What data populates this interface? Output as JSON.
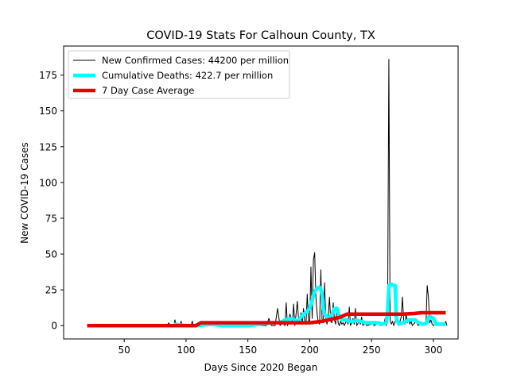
{
  "chart_data": {
    "type": "line",
    "title": "COVID-19 Stats For Calhoun County, TX",
    "xlabel": "Days Since 2020 Began",
    "ylabel": "New COVID-19 Cases",
    "xlim": [
      1,
      320
    ],
    "ylim": [
      -9.3,
      195.3
    ],
    "xticks": [
      50,
      100,
      150,
      200,
      250,
      300
    ],
    "yticks": [
      0,
      25,
      50,
      75,
      100,
      125,
      150,
      175
    ],
    "grid": false,
    "legend_position": "top-left",
    "series": [
      {
        "name": "New Confirmed Cases: 44200 per million",
        "color": "#000000",
        "points": [
          [
            20,
            0
          ],
          [
            85,
            0
          ],
          [
            86,
            2
          ],
          [
            87,
            0
          ],
          [
            90,
            0
          ],
          [
            91,
            4
          ],
          [
            92,
            0
          ],
          [
            95,
            0
          ],
          [
            96,
            3
          ],
          [
            97,
            0
          ],
          [
            104,
            0
          ],
          [
            105,
            3
          ],
          [
            106,
            0
          ],
          [
            110,
            0
          ],
          [
            112,
            1
          ],
          [
            114,
            0
          ],
          [
            130,
            0
          ],
          [
            132,
            2
          ],
          [
            134,
            0
          ],
          [
            140,
            0
          ],
          [
            142,
            1
          ],
          [
            144,
            0
          ],
          [
            155,
            0
          ],
          [
            157,
            2
          ],
          [
            159,
            0
          ],
          [
            165,
            0
          ],
          [
            167,
            5
          ],
          [
            169,
            0
          ],
          [
            172,
            0
          ],
          [
            174,
            12
          ],
          [
            176,
            0
          ],
          [
            178,
            2
          ],
          [
            180,
            0
          ],
          [
            181,
            16
          ],
          [
            182,
            0
          ],
          [
            184,
            8
          ],
          [
            186,
            2
          ],
          [
            187,
            15
          ],
          [
            188,
            0
          ],
          [
            190,
            17
          ],
          [
            191,
            4
          ],
          [
            192,
            2
          ],
          [
            193,
            9
          ],
          [
            194,
            1
          ],
          [
            195,
            12
          ],
          [
            196,
            3
          ],
          [
            197,
            1
          ],
          [
            198,
            22
          ],
          [
            199,
            4
          ],
          [
            200,
            2
          ],
          [
            201,
            41
          ],
          [
            202,
            5
          ],
          [
            203,
            46
          ],
          [
            204,
            51
          ],
          [
            205,
            20
          ],
          [
            206,
            8
          ],
          [
            207,
            2
          ],
          [
            208,
            1
          ],
          [
            209,
            39
          ],
          [
            210,
            4
          ],
          [
            211,
            2
          ],
          [
            212,
            30
          ],
          [
            213,
            5
          ],
          [
            214,
            1
          ],
          [
            215,
            7
          ],
          [
            216,
            20
          ],
          [
            217,
            3
          ],
          [
            218,
            2
          ],
          [
            219,
            16
          ],
          [
            220,
            4
          ],
          [
            221,
            1
          ],
          [
            222,
            13
          ],
          [
            223,
            2
          ],
          [
            224,
            0
          ],
          [
            225,
            3
          ],
          [
            226,
            1
          ],
          [
            227,
            2
          ],
          [
            228,
            0
          ],
          [
            230,
            4
          ],
          [
            231,
            1
          ],
          [
            232,
            13
          ],
          [
            233,
            0
          ],
          [
            234,
            2
          ],
          [
            235,
            5
          ],
          [
            236,
            1
          ],
          [
            237,
            12
          ],
          [
            238,
            0
          ],
          [
            240,
            3
          ],
          [
            241,
            1
          ],
          [
            242,
            6
          ],
          [
            243,
            0
          ],
          [
            245,
            2
          ],
          [
            246,
            0
          ],
          [
            250,
            1
          ],
          [
            251,
            3
          ],
          [
            252,
            0
          ],
          [
            256,
            2
          ],
          [
            257,
            0
          ],
          [
            260,
            1
          ],
          [
            261,
            5
          ],
          [
            262,
            0
          ],
          [
            263,
            10
          ],
          [
            264,
            186
          ],
          [
            265,
            4
          ],
          [
            266,
            1
          ],
          [
            267,
            3
          ],
          [
            268,
            0
          ],
          [
            270,
            5
          ],
          [
            271,
            2
          ],
          [
            272,
            0
          ],
          [
            274,
            6
          ],
          [
            275,
            20
          ],
          [
            276,
            3
          ],
          [
            277,
            1
          ],
          [
            278,
            8
          ],
          [
            279,
            2
          ],
          [
            280,
            5
          ],
          [
            281,
            1
          ],
          [
            282,
            3
          ],
          [
            283,
            0
          ],
          [
            285,
            2
          ],
          [
            286,
            4
          ],
          [
            287,
            1
          ],
          [
            288,
            0
          ],
          [
            290,
            2
          ],
          [
            291,
            0
          ],
          [
            294,
            1
          ],
          [
            295,
            28
          ],
          [
            296,
            20
          ],
          [
            297,
            2
          ],
          [
            298,
            4
          ],
          [
            299,
            1
          ],
          [
            300,
            0
          ],
          [
            302,
            2
          ],
          [
            303,
            0
          ],
          [
            306,
            1
          ],
          [
            307,
            2
          ],
          [
            308,
            0
          ],
          [
            310,
            3
          ],
          [
            311,
            0
          ]
        ]
      },
      {
        "name": "Cumulative Deaths: 422.7 per million",
        "color": "#00ffff",
        "points": [
          [
            90,
            1
          ],
          [
            100,
            0
          ],
          [
            110,
            0
          ],
          [
            120,
            1
          ],
          [
            130,
            0
          ],
          [
            150,
            0
          ],
          [
            160,
            1
          ],
          [
            170,
            2
          ],
          [
            175,
            2
          ],
          [
            178,
            3
          ],
          [
            180,
            4
          ],
          [
            185,
            5
          ],
          [
            188,
            4
          ],
          [
            190,
            3
          ],
          [
            195,
            8
          ],
          [
            198,
            10
          ],
          [
            200,
            12
          ],
          [
            202,
            18
          ],
          [
            204,
            24
          ],
          [
            206,
            26
          ],
          [
            208,
            27
          ],
          [
            209,
            25
          ],
          [
            210,
            22
          ],
          [
            211,
            12
          ],
          [
            212,
            8
          ],
          [
            214,
            6
          ],
          [
            216,
            5
          ],
          [
            218,
            8
          ],
          [
            220,
            12
          ],
          [
            222,
            12
          ],
          [
            224,
            6
          ],
          [
            226,
            4
          ],
          [
            230,
            4
          ],
          [
            232,
            3
          ],
          [
            235,
            3
          ],
          [
            238,
            4
          ],
          [
            240,
            3
          ],
          [
            242,
            3
          ],
          [
            245,
            2
          ],
          [
            250,
            2
          ],
          [
            255,
            2
          ],
          [
            258,
            1
          ],
          [
            262,
            2
          ],
          [
            263,
            10
          ],
          [
            264,
            28
          ],
          [
            266,
            29
          ],
          [
            268,
            28
          ],
          [
            269,
            28
          ],
          [
            270,
            5
          ],
          [
            272,
            1
          ],
          [
            275,
            2
          ],
          [
            278,
            3
          ],
          [
            280,
            4
          ],
          [
            285,
            4
          ],
          [
            288,
            2
          ],
          [
            292,
            1
          ],
          [
            295,
            2
          ],
          [
            296,
            6
          ],
          [
            298,
            6
          ],
          [
            300,
            5
          ],
          [
            302,
            1
          ],
          [
            305,
            1
          ],
          [
            310,
            1
          ]
        ]
      },
      {
        "name": "7 Day Case Average",
        "color": "#e60000",
        "points": [
          [
            20,
            0
          ],
          [
            108,
            0
          ],
          [
            112,
            2
          ],
          [
            160,
            2
          ],
          [
            170,
            2
          ],
          [
            200,
            2
          ],
          [
            210,
            3
          ],
          [
            215,
            4
          ],
          [
            220,
            5
          ],
          [
            225,
            6
          ],
          [
            230,
            8
          ],
          [
            250,
            8
          ],
          [
            265,
            8
          ],
          [
            275,
            8
          ],
          [
            285,
            8.5
          ],
          [
            290,
            9
          ],
          [
            300,
            9
          ],
          [
            310,
            9
          ]
        ]
      }
    ]
  }
}
